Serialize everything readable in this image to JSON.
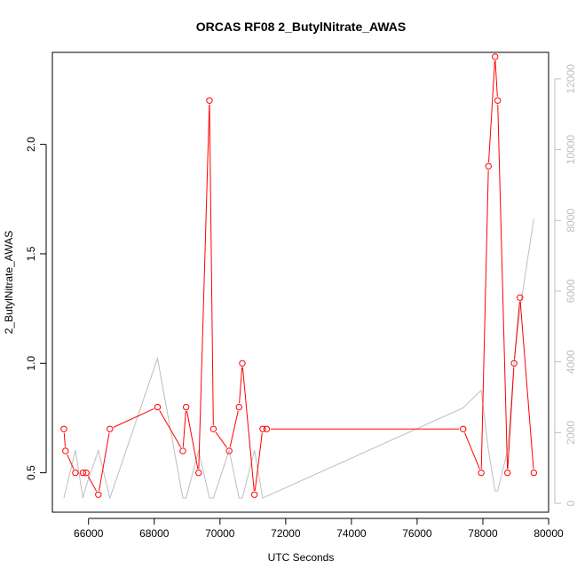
{
  "chart_data": {
    "type": "line",
    "title": "ORCAS RF08 2_ButylNitrate_AWAS",
    "xlabel": "UTC Seconds",
    "ylabel": "2_ButylNitrate_AWAS",
    "xlim": [
      64900,
      80000
    ],
    "ylim": [
      0.32,
      2.42
    ],
    "y2lim": [
      -250,
      12750
    ],
    "xticks": [
      66000,
      68000,
      70000,
      72000,
      74000,
      76000,
      78000,
      80000
    ],
    "yticks": [
      0.5,
      1.0,
      1.5,
      2.0
    ],
    "ytick_labels": [
      "0.5",
      "1.0",
      "1.5",
      "2.0"
    ],
    "y2ticks": [
      0,
      2000,
      4000,
      6000,
      8000,
      10000,
      12000
    ],
    "colors": {
      "primary": "#ff0000",
      "secondary": "#bebebe",
      "axis": "#000000"
    },
    "series": [
      {
        "axis": "left",
        "marker": "open-circle",
        "x": [
          65250,
          65300,
          65600,
          65830,
          65930,
          66300,
          66650,
          68100,
          68870,
          68970,
          69350,
          69680,
          69800,
          70280,
          70580,
          70680,
          71050,
          71300,
          71420,
          77400,
          77950,
          78170,
          78370,
          78450,
          78750,
          78950,
          79130,
          79550
        ],
        "y": [
          0.7,
          0.6,
          0.5,
          0.5,
          0.5,
          0.4,
          0.7,
          0.8,
          0.6,
          0.8,
          0.5,
          2.2,
          0.7,
          0.6,
          0.8,
          1.0,
          0.4,
          0.7,
          0.7,
          0.7,
          0.5,
          1.9,
          2.4,
          2.2,
          0.5,
          1.0,
          1.3,
          0.5
        ]
      },
      {
        "axis": "right",
        "x": [
          65250,
          65600,
          65830,
          65930,
          66300,
          66650,
          68100,
          68870,
          68970,
          69350,
          69680,
          69800,
          70280,
          70580,
          70680,
          71050,
          71300,
          77400,
          77950,
          78170,
          78370,
          78450,
          78750,
          78950,
          79130,
          79550
        ],
        "y": [
          150,
          1500,
          150,
          500,
          1500,
          150,
          4100,
          150,
          150,
          1500,
          150,
          150,
          1500,
          150,
          150,
          1500,
          150,
          2700,
          3200,
          1500,
          350,
          350,
          1500,
          4000,
          5500,
          8050
        ]
      }
    ]
  }
}
